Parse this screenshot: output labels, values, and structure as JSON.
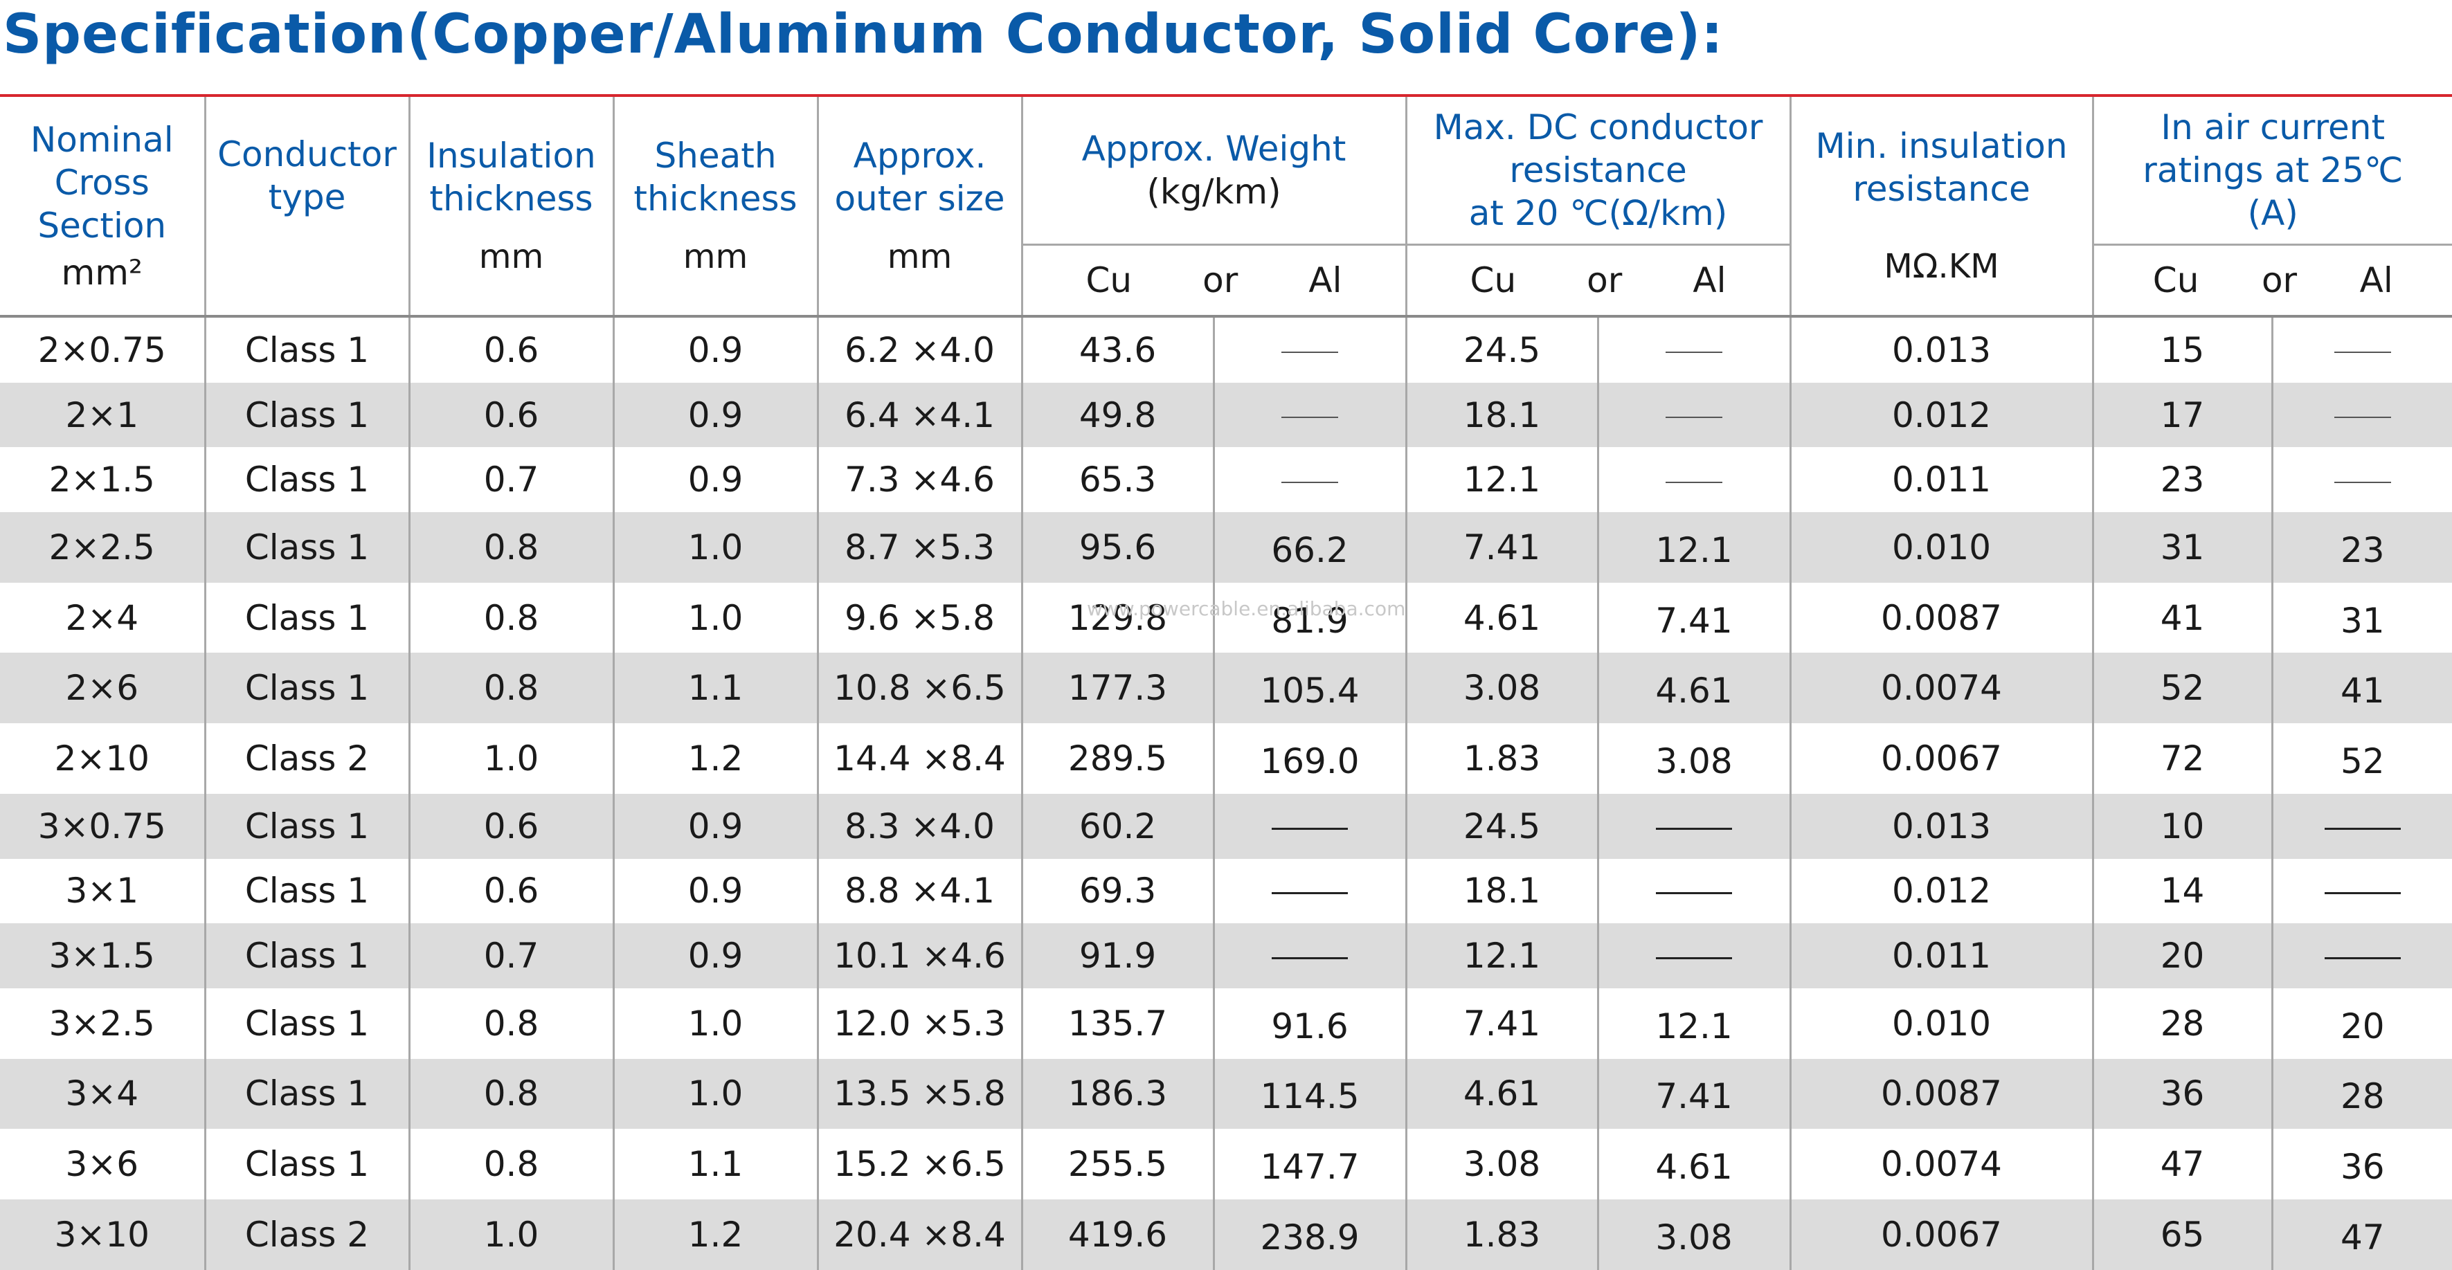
{
  "title": "Specification(Copper/Aluminum Conductor, Solid Core):",
  "watermark": "www.powercable.en.alibaba.com",
  "headers": {
    "nominal": [
      "Nominal",
      "Cross",
      "Section"
    ],
    "nominal_unit": "mm²",
    "conductor": [
      "Conductor",
      "type"
    ],
    "insulation": [
      "Insulation",
      "thickness"
    ],
    "insulation_unit": "mm",
    "sheath": [
      "Sheath",
      "thickness"
    ],
    "sheath_unit": "mm",
    "outer": [
      "Approx.",
      "outer size"
    ],
    "outer_unit": "mm",
    "weight": [
      "Approx. Weight",
      "(kg/km)"
    ],
    "resistance": [
      "Max. DC conductor",
      "resistance",
      "at 20 ℃(Ω/km)"
    ],
    "insres": [
      "Min. insulation",
      "resistance"
    ],
    "insres_unit": "MΩ.KM",
    "current": [
      "In air current",
      "ratings at 25℃",
      "(A)"
    ],
    "cu": "Cu",
    "or": "or",
    "al": "Al"
  },
  "rows": [
    {
      "section": "2×0.75",
      "type": "Class 1",
      "ins": "0.6",
      "sheath": "0.9",
      "outer": "6.2 ×4.0",
      "w_cu": "43.6",
      "w_al": "",
      "r_cu": "24.5",
      "r_al": "",
      "insres": "0.013",
      "i_cu": "15",
      "i_al": ""
    },
    {
      "section": "2×1",
      "type": "Class 1",
      "ins": "0.6",
      "sheath": "0.9",
      "outer": "6.4 ×4.1",
      "w_cu": "49.8",
      "w_al": "",
      "r_cu": "18.1",
      "r_al": "",
      "insres": "0.012",
      "i_cu": "17",
      "i_al": ""
    },
    {
      "section": "2×1.5",
      "type": "Class 1",
      "ins": "0.7",
      "sheath": "0.9",
      "outer": "7.3 ×4.6",
      "w_cu": "65.3",
      "w_al": "",
      "r_cu": "12.1",
      "r_al": "",
      "insres": "0.011",
      "i_cu": "23",
      "i_al": ""
    },
    {
      "section": "2×2.5",
      "type": "Class 1",
      "ins": "0.8",
      "sheath": "1.0",
      "outer": "8.7 ×5.3",
      "w_cu": "95.6",
      "w_al": "66.2",
      "r_cu": "7.41",
      "r_al": "12.1",
      "insres": "0.010",
      "i_cu": "31",
      "i_al": "23"
    },
    {
      "section": "2×4",
      "type": "Class 1",
      "ins": "0.8",
      "sheath": "1.0",
      "outer": "9.6 ×5.8",
      "w_cu": "129.8",
      "w_al": "81.9",
      "r_cu": "4.61",
      "r_al": "7.41",
      "insres": "0.0087",
      "i_cu": "41",
      "i_al": "31"
    },
    {
      "section": "2×6",
      "type": "Class 1",
      "ins": "0.8",
      "sheath": "1.1",
      "outer": "10.8 ×6.5",
      "w_cu": "177.3",
      "w_al": "105.4",
      "r_cu": "3.08",
      "r_al": "4.61",
      "insres": "0.0074",
      "i_cu": "52",
      "i_al": "41"
    },
    {
      "section": "2×10",
      "type": "Class 2",
      "ins": "1.0",
      "sheath": "1.2",
      "outer": "14.4 ×8.4",
      "w_cu": "289.5",
      "w_al": "169.0",
      "r_cu": "1.83",
      "r_al": "3.08",
      "insres": "0.0067",
      "i_cu": "72",
      "i_al": "52"
    },
    {
      "section": "3×0.75",
      "type": "Class 1",
      "ins": "0.6",
      "sheath": "0.9",
      "outer": "8.3 ×4.0",
      "w_cu": "60.2",
      "w_al": "",
      "r_cu": "24.5",
      "r_al": "",
      "insres": "0.013",
      "i_cu": "10",
      "i_al": ""
    },
    {
      "section": "3×1",
      "type": "Class 1",
      "ins": "0.6",
      "sheath": "0.9",
      "outer": "8.8 ×4.1",
      "w_cu": "69.3",
      "w_al": "",
      "r_cu": "18.1",
      "r_al": "",
      "insres": "0.012",
      "i_cu": "14",
      "i_al": ""
    },
    {
      "section": "3×1.5",
      "type": "Class 1",
      "ins": "0.7",
      "sheath": "0.9",
      "outer": "10.1 ×4.6",
      "w_cu": "91.9",
      "w_al": "",
      "r_cu": "12.1",
      "r_al": "",
      "insres": "0.011",
      "i_cu": "20",
      "i_al": ""
    },
    {
      "section": "3×2.5",
      "type": "Class 1",
      "ins": "0.8",
      "sheath": "1.0",
      "outer": "12.0 ×5.3",
      "w_cu": "135.7",
      "w_al": "91.6",
      "r_cu": "7.41",
      "r_al": "12.1",
      "insres": "0.010",
      "i_cu": "28",
      "i_al": "20"
    },
    {
      "section": "3×4",
      "type": "Class 1",
      "ins": "0.8",
      "sheath": "1.0",
      "outer": "13.5 ×5.8",
      "w_cu": "186.3",
      "w_al": "114.5",
      "r_cu": "4.61",
      "r_al": "7.41",
      "insres": "0.0087",
      "i_cu": "36",
      "i_al": "28"
    },
    {
      "section": "3×6",
      "type": "Class 1",
      "ins": "0.8",
      "sheath": "1.1",
      "outer": "15.2 ×6.5",
      "w_cu": "255.5",
      "w_al": "147.7",
      "r_cu": "3.08",
      "r_al": "4.61",
      "insres": "0.0074",
      "i_cu": "47",
      "i_al": "36"
    },
    {
      "section": "3×10",
      "type": "Class 2",
      "ins": "1.0",
      "sheath": "1.2",
      "outer": "20.4 ×8.4",
      "w_cu": "419.6",
      "w_al": "238.9",
      "r_cu": "1.83",
      "r_al": "3.08",
      "insres": "0.0067",
      "i_cu": "65",
      "i_al": "47"
    }
  ]
}
